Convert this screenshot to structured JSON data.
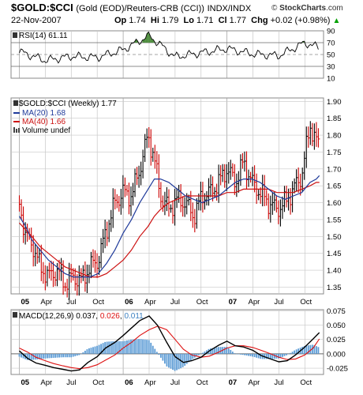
{
  "header": {
    "symbol": "$GOLD:$CCI",
    "description": "(Gold (EOD)/Reuters-CRB (CCI))",
    "exchange": "INDX/INDX",
    "brand_prefix": "© ",
    "brand_name": "StockCharts",
    "brand_suffix": ".com",
    "date": "22-Nov-2007",
    "open_label": "Op",
    "open": "1.74",
    "high_label": "Hi",
    "high": "1.79",
    "low_label": "Lo",
    "low": "1.71",
    "close_label": "Cl",
    "close": "1.77",
    "change_label": "Chg",
    "change": "+0.02 (+0.98%)",
    "change_arrow": "▲"
  },
  "rsi_panel": {
    "legend": "RSI(14) 61.11",
    "ticks": [
      "90",
      "70",
      "50",
      "30",
      "10"
    ]
  },
  "price_panel": {
    "legend_main": "$GOLD:$CCI (Weekly) 1.77",
    "legend_ma20": "MA(20) 1.68",
    "legend_ma40": "MA(40) 1.66",
    "legend_volume": "Volume undef",
    "ticks": [
      "1.90",
      "1.85",
      "1.80",
      "1.75",
      "1.70",
      "1.65",
      "1.60",
      "1.55",
      "1.50",
      "1.45",
      "1.40",
      "1.35"
    ]
  },
  "x_axis": {
    "labels": [
      "05",
      "Apr",
      "Jul",
      "Oct",
      "06",
      "Apr",
      "Jul",
      "Oct",
      "07",
      "Apr",
      "Jul",
      "Oct"
    ]
  },
  "macd_panel": {
    "legend_prefix": "MACD(12,26,9) ",
    "macd": "0.037",
    "signal": "0.026",
    "histogram": "0.011",
    "ticks": [
      "0.075",
      "0.050",
      "0.025",
      "0.000",
      "-0.025"
    ]
  },
  "colors": {
    "price_up": "#000000",
    "price_down": "#cc0000",
    "ma20": "#1f3a9a",
    "ma40": "#cc1111",
    "rsi_line": "#000000",
    "rsi_fill": "#4a8a3a",
    "macd_line": "#000000",
    "signal_line": "#dd1111",
    "histogram": "#5b9bd5",
    "grid": "#c8c8c8"
  },
  "chart_data": [
    {
      "type": "line",
      "title": "RSI(14)",
      "x": [
        2005.0,
        2005.25,
        2005.5,
        2005.75,
        2006.0,
        2006.25,
        2006.5,
        2006.75,
        2007.0,
        2007.25,
        2007.5,
        2007.75,
        2007.89
      ],
      "series": [
        {
          "name": "RSI(14)",
          "values": [
            55,
            40,
            47,
            45,
            58,
            82,
            46,
            53,
            60,
            51,
            48,
            70,
            61.11
          ]
        }
      ],
      "ylim": [
        10,
        90
      ],
      "guides": [
        70,
        30
      ]
    },
    {
      "type": "line",
      "title": "$GOLD:$CCI (Weekly)",
      "x": [
        2005.0,
        2005.06,
        2005.12,
        2005.2,
        2005.28,
        2005.36,
        2005.44,
        2005.52,
        2005.6,
        2005.68,
        2005.76,
        2005.84,
        2005.92,
        2006.0,
        2006.08,
        2006.16,
        2006.24,
        2006.3,
        2006.36,
        2006.44,
        2006.52,
        2006.6,
        2006.68,
        2006.76,
        2006.84,
        2006.92,
        2007.0,
        2007.08,
        2007.16,
        2007.24,
        2007.32,
        2007.4,
        2007.48,
        2007.56,
        2007.64,
        2007.72,
        2007.8,
        2007.86,
        2007.89
      ],
      "series": [
        {
          "name": "$GOLD:$CCI",
          "values": [
            1.6,
            1.5,
            1.48,
            1.41,
            1.38,
            1.4,
            1.36,
            1.38,
            1.37,
            1.41,
            1.43,
            1.52,
            1.6,
            1.63,
            1.62,
            1.7,
            1.8,
            1.73,
            1.62,
            1.58,
            1.61,
            1.6,
            1.56,
            1.62,
            1.63,
            1.66,
            1.7,
            1.66,
            1.72,
            1.66,
            1.63,
            1.6,
            1.58,
            1.6,
            1.64,
            1.68,
            1.83,
            1.78,
            1.77
          ]
        },
        {
          "name": "MA(20)",
          "values": [
            1.56,
            1.53,
            1.49,
            1.46,
            1.43,
            1.41,
            1.39,
            1.38,
            1.38,
            1.38,
            1.39,
            1.42,
            1.46,
            1.51,
            1.55,
            1.6,
            1.64,
            1.67,
            1.67,
            1.66,
            1.64,
            1.62,
            1.61,
            1.6,
            1.61,
            1.62,
            1.64,
            1.66,
            1.67,
            1.67,
            1.66,
            1.64,
            1.62,
            1.61,
            1.62,
            1.63,
            1.66,
            1.67,
            1.68
          ]
        },
        {
          "name": "MA(40)",
          "values": [
            1.54,
            1.52,
            1.5,
            1.47,
            1.45,
            1.43,
            1.41,
            1.4,
            1.39,
            1.38,
            1.38,
            1.39,
            1.41,
            1.43,
            1.46,
            1.5,
            1.53,
            1.56,
            1.58,
            1.6,
            1.61,
            1.62,
            1.62,
            1.62,
            1.62,
            1.62,
            1.63,
            1.63,
            1.64,
            1.64,
            1.64,
            1.64,
            1.63,
            1.63,
            1.63,
            1.64,
            1.65,
            1.66,
            1.66
          ]
        }
      ],
      "ylim": [
        1.33,
        1.91
      ]
    },
    {
      "type": "line",
      "title": "MACD(12,26,9)",
      "x": [
        2005.0,
        2005.08,
        2005.16,
        2005.25,
        2005.33,
        2005.42,
        2005.5,
        2005.58,
        2005.66,
        2005.75,
        2005.83,
        2005.92,
        2006.0,
        2006.08,
        2006.16,
        2006.25,
        2006.33,
        2006.42,
        2006.5,
        2006.58,
        2006.66,
        2006.75,
        2006.83,
        2006.92,
        2007.0,
        2007.08,
        2007.16,
        2007.25,
        2007.33,
        2007.42,
        2007.5,
        2007.58,
        2007.66,
        2007.75,
        2007.83,
        2007.89
      ],
      "series": [
        {
          "name": "MACD",
          "values": [
            0.005,
            -0.008,
            -0.016,
            -0.02,
            -0.024,
            -0.027,
            -0.03,
            -0.028,
            -0.015,
            -0.005,
            0.01,
            0.02,
            0.032,
            0.045,
            0.058,
            0.066,
            0.05,
            0.02,
            -0.005,
            -0.015,
            -0.012,
            -0.006,
            0.005,
            0.015,
            0.022,
            0.014,
            0.012,
            0.006,
            -0.003,
            -0.009,
            -0.014,
            -0.012,
            -0.002,
            0.012,
            0.026,
            0.037
          ]
        },
        {
          "name": "Signal",
          "values": [
            0.01,
            0.003,
            -0.006,
            -0.012,
            -0.017,
            -0.021,
            -0.024,
            -0.026,
            -0.024,
            -0.019,
            -0.011,
            -0.002,
            0.01,
            0.02,
            0.032,
            0.042,
            0.048,
            0.042,
            0.025,
            0.008,
            -0.002,
            -0.006,
            -0.004,
            0.003,
            0.01,
            0.014,
            0.014,
            0.011,
            0.006,
            0.0,
            -0.006,
            -0.01,
            -0.009,
            -0.002,
            0.01,
            0.026
          ]
        },
        {
          "name": "Histogram",
          "values": [
            -0.005,
            -0.011,
            -0.01,
            -0.008,
            -0.007,
            -0.006,
            -0.006,
            -0.002,
            0.009,
            0.014,
            0.021,
            0.022,
            0.022,
            0.025,
            0.026,
            0.024,
            0.002,
            -0.022,
            -0.03,
            -0.023,
            -0.01,
            0.0,
            0.009,
            0.012,
            0.012,
            0.0,
            -0.002,
            -0.005,
            -0.009,
            -0.009,
            -0.008,
            -0.002,
            0.007,
            0.014,
            0.016,
            0.011
          ]
        }
      ],
      "ylim": [
        -0.036,
        0.077
      ]
    }
  ]
}
